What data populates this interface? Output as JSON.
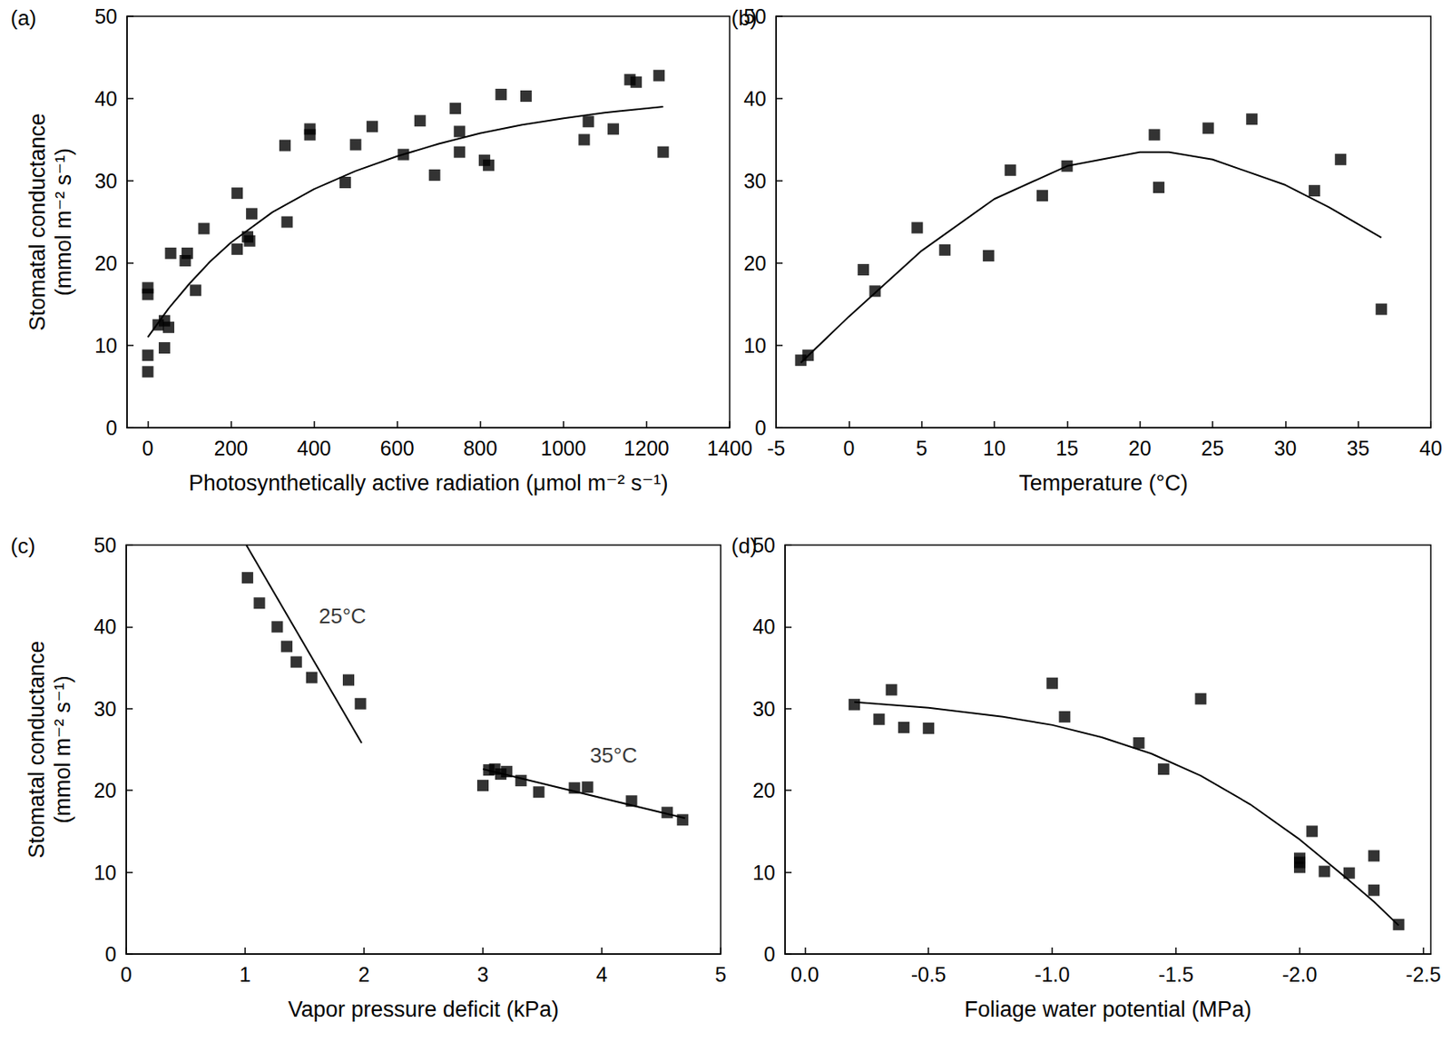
{
  "chart_data": [
    {
      "type": "scatter",
      "title": "(a)",
      "x_label": "Photosynthetically active radiation (μmol m⁻² s⁻¹)",
      "y_label": "Stomatal conductance\n(mmol m⁻² s⁻¹)",
      "xlim": [
        -50,
        1400
      ],
      "xticks": [
        0,
        200,
        400,
        600,
        800,
        1000,
        1200,
        1400
      ],
      "ylim": [
        0,
        50
      ],
      "yticks": [
        0,
        10,
        20,
        30,
        40,
        50
      ],
      "grid": false,
      "series": [
        {
          "type": "scatter",
          "marker": "square",
          "color": "#000000",
          "x": [
            0,
            0,
            0,
            0,
            25,
            40,
            40,
            50,
            55,
            90,
            95,
            115,
            135,
            215,
            215,
            240,
            245,
            250,
            330,
            335,
            390,
            390,
            475,
            500,
            540,
            615,
            655,
            690,
            740,
            750,
            750,
            810,
            820,
            850,
            910,
            1050,
            1060,
            1120,
            1160,
            1175,
            1230,
            1240
          ],
          "values": [
            17,
            16.2,
            8.8,
            6.8,
            12.5,
            9.7,
            13,
            12.2,
            21.2,
            20.3,
            21.2,
            16.7,
            24.2,
            28.5,
            21.7,
            23.2,
            22.7,
            26,
            34.3,
            25,
            35.6,
            36.3,
            29.8,
            34.4,
            36.6,
            33.2,
            37.3,
            30.7,
            38.8,
            36,
            33.5,
            32.5,
            31.9,
            40.5,
            40.3,
            35,
            37.2,
            36.3,
            42.3,
            42,
            42.8,
            33.5
          ]
        },
        {
          "type": "line",
          "line_style": "solid",
          "color": "#000000",
          "x": [
            0,
            50,
            100,
            150,
            200,
            300,
            400,
            500,
            600,
            700,
            800,
            900,
            1000,
            1100,
            1240
          ],
          "values": [
            11,
            14.5,
            17.5,
            20.2,
            22.5,
            26.2,
            29,
            31.2,
            33,
            34.5,
            35.8,
            36.8,
            37.6,
            38.3,
            39
          ]
        }
      ]
    },
    {
      "type": "scatter",
      "title": "(b)",
      "x_label": "Temperature (°C)",
      "xlim": [
        -5,
        40
      ],
      "xticks": [
        -5,
        0,
        5,
        10,
        15,
        20,
        25,
        30,
        35,
        40
      ],
      "ylim": [
        0,
        50
      ],
      "yticks": [
        0,
        10,
        20,
        30,
        40,
        50
      ],
      "grid": false,
      "series": [
        {
          "type": "scatter",
          "marker": "square",
          "color": "#000000",
          "x": [
            -3.3,
            -2.8,
            1,
            1.8,
            4.7,
            6.6,
            9.6,
            11.1,
            13.3,
            15,
            21,
            21.3,
            24.7,
            27.7,
            32,
            33.8,
            36.6
          ],
          "values": [
            8.2,
            8.8,
            19.2,
            16.6,
            24.3,
            21.6,
            20.9,
            31.3,
            28.2,
            31.8,
            35.6,
            29.2,
            36.4,
            37.5,
            28.8,
            32.6,
            14.4
          ]
        },
        {
          "type": "line",
          "line_style": "solid",
          "color": "#000000",
          "x": [
            -3.3,
            0,
            5,
            10,
            15,
            20,
            22,
            25,
            30,
            33,
            36.6
          ],
          "values": [
            7.9,
            13.5,
            21.5,
            27.8,
            31.8,
            33.5,
            33.5,
            32.6,
            29.5,
            26.8,
            23.1
          ]
        }
      ]
    },
    {
      "type": "scatter",
      "title": "(c)",
      "x_label": "Vapor pressure deficit (kPa)",
      "y_label": "Stomatal conductance\n(mmol m⁻² s⁻¹)",
      "xlim": [
        0,
        5
      ],
      "xticks": [
        0,
        1,
        2,
        3,
        4,
        5
      ],
      "ylim": [
        0,
        50
      ],
      "yticks": [
        0,
        10,
        20,
        30,
        40,
        50
      ],
      "grid": false,
      "series": [
        {
          "type": "scatter",
          "marker": "square",
          "color": "#000000",
          "x": [
            1.02,
            1.12,
            1.27,
            1.35,
            1.43,
            1.56,
            1.87,
            1.97
          ],
          "values": [
            46,
            42.9,
            40,
            37.6,
            35.7,
            33.8,
            33.5,
            30.6
          ]
        },
        {
          "type": "line",
          "line_style": "solid",
          "color": "#000000",
          "x": [
            1.01,
            1.98
          ],
          "values": [
            50,
            25.8
          ]
        },
        {
          "type": "scatter",
          "marker": "square",
          "color": "#000000",
          "x": [
            3.0,
            3.05,
            3.1,
            3.15,
            3.2,
            3.32,
            3.47,
            3.77,
            3.88,
            4.25,
            4.55,
            4.68
          ],
          "values": [
            20.6,
            22.5,
            22.6,
            22,
            22.3,
            21.2,
            19.8,
            20.3,
            20.4,
            18.7,
            17.3,
            16.4
          ]
        },
        {
          "type": "line",
          "line_style": "solid",
          "color": "#000000",
          "x": [
            3.0,
            4.7
          ],
          "values": [
            22.6,
            16.6
          ]
        }
      ],
      "annotations": [
        {
          "text": "25°C",
          "x": 1.62,
          "y": 41.3
        },
        {
          "text": "35°C",
          "x": 3.9,
          "y": 24.3
        }
      ]
    },
    {
      "type": "scatter",
      "title": "(d)",
      "x_label": "Foliage water potential (MPa)",
      "xlim": [
        0.08,
        -2.53
      ],
      "xticks": [
        {
          "value": 0,
          "label": "0.0"
        },
        {
          "value": -0.5,
          "label": "-0.5"
        },
        {
          "value": -1,
          "label": "-1.0"
        },
        {
          "value": -1.5,
          "label": "-1.5"
        },
        {
          "value": -2,
          "label": "-2.0"
        },
        {
          "value": -2.5,
          "label": "-2.5"
        }
      ],
      "ylim": [
        0,
        50
      ],
      "yticks": [
        0,
        10,
        20,
        30,
        40,
        50
      ],
      "grid": false,
      "series": [
        {
          "type": "scatter",
          "marker": "square",
          "color": "#000000",
          "x": [
            -0.2,
            -0.3,
            -0.35,
            -0.4,
            -0.5,
            -1.0,
            -1.05,
            -1.35,
            -1.45,
            -1.6,
            -2.0,
            -2.0,
            -2.0,
            -2.05,
            -2.1,
            -2.2,
            -2.3,
            -2.3,
            -2.4
          ],
          "values": [
            30.5,
            28.7,
            32.3,
            27.7,
            27.6,
            33.1,
            29,
            25.8,
            22.6,
            31.2,
            11.7,
            11.2,
            10.6,
            15,
            10.1,
            9.9,
            12,
            7.8,
            3.6
          ]
        },
        {
          "type": "line",
          "line_style": "solid",
          "color": "#000000",
          "x": [
            -0.2,
            -0.5,
            -0.8,
            -1.0,
            -1.2,
            -1.4,
            -1.6,
            -1.8,
            -2.0,
            -2.1,
            -2.2,
            -2.3,
            -2.4
          ],
          "values": [
            30.8,
            30.1,
            29,
            28,
            26.5,
            24.5,
            21.8,
            18.3,
            14,
            11.5,
            9,
            6.4,
            3.5
          ]
        }
      ]
    }
  ]
}
